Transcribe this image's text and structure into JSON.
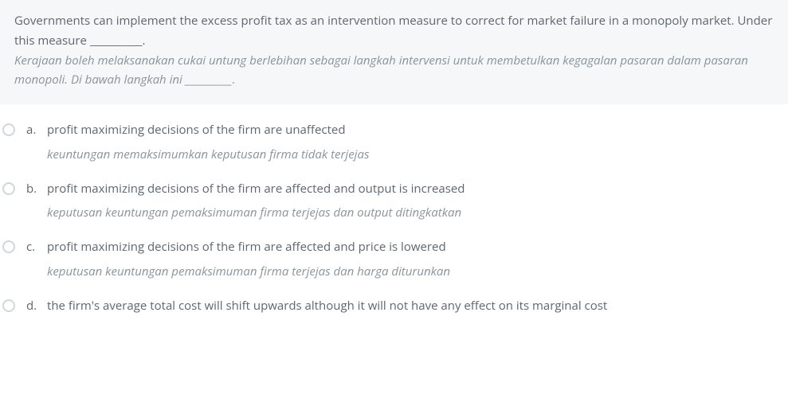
{
  "question": {
    "en": "Governments can implement the excess profit tax as an intervention measure to correct for market failure in a monopoly market. Under this measure __________.",
    "ms": "Kerajaan boleh melaksanakan cukai untung berlebihan sebagai langkah intervensi untuk membetulkan kegagalan pasaran dalam pasaran monopoli. Di bawah langkah ini __________."
  },
  "options": [
    {
      "letter": "a.",
      "en": "profit maximizing decisions of the firm are unaffected",
      "ms": "keuntungan memaksimumkan keputusan firma tidak terjejas"
    },
    {
      "letter": "b.",
      "en": "profit maximizing decisions of the firm are affected and output is increased",
      "ms": "keputusan keuntungan pemaksimuman firma terjejas dan output ditingkatkan"
    },
    {
      "letter": "c.",
      "en": "profit maximizing decisions of the firm are affected and price is lowered",
      "ms": "keputusan keuntungan pemaksimuman firma terjejas dan harga diturunkan"
    },
    {
      "letter": "d.",
      "en": "the firm's average total cost will shift upwards although it will not have any effect on its marginal cost",
      "ms": ""
    }
  ]
}
